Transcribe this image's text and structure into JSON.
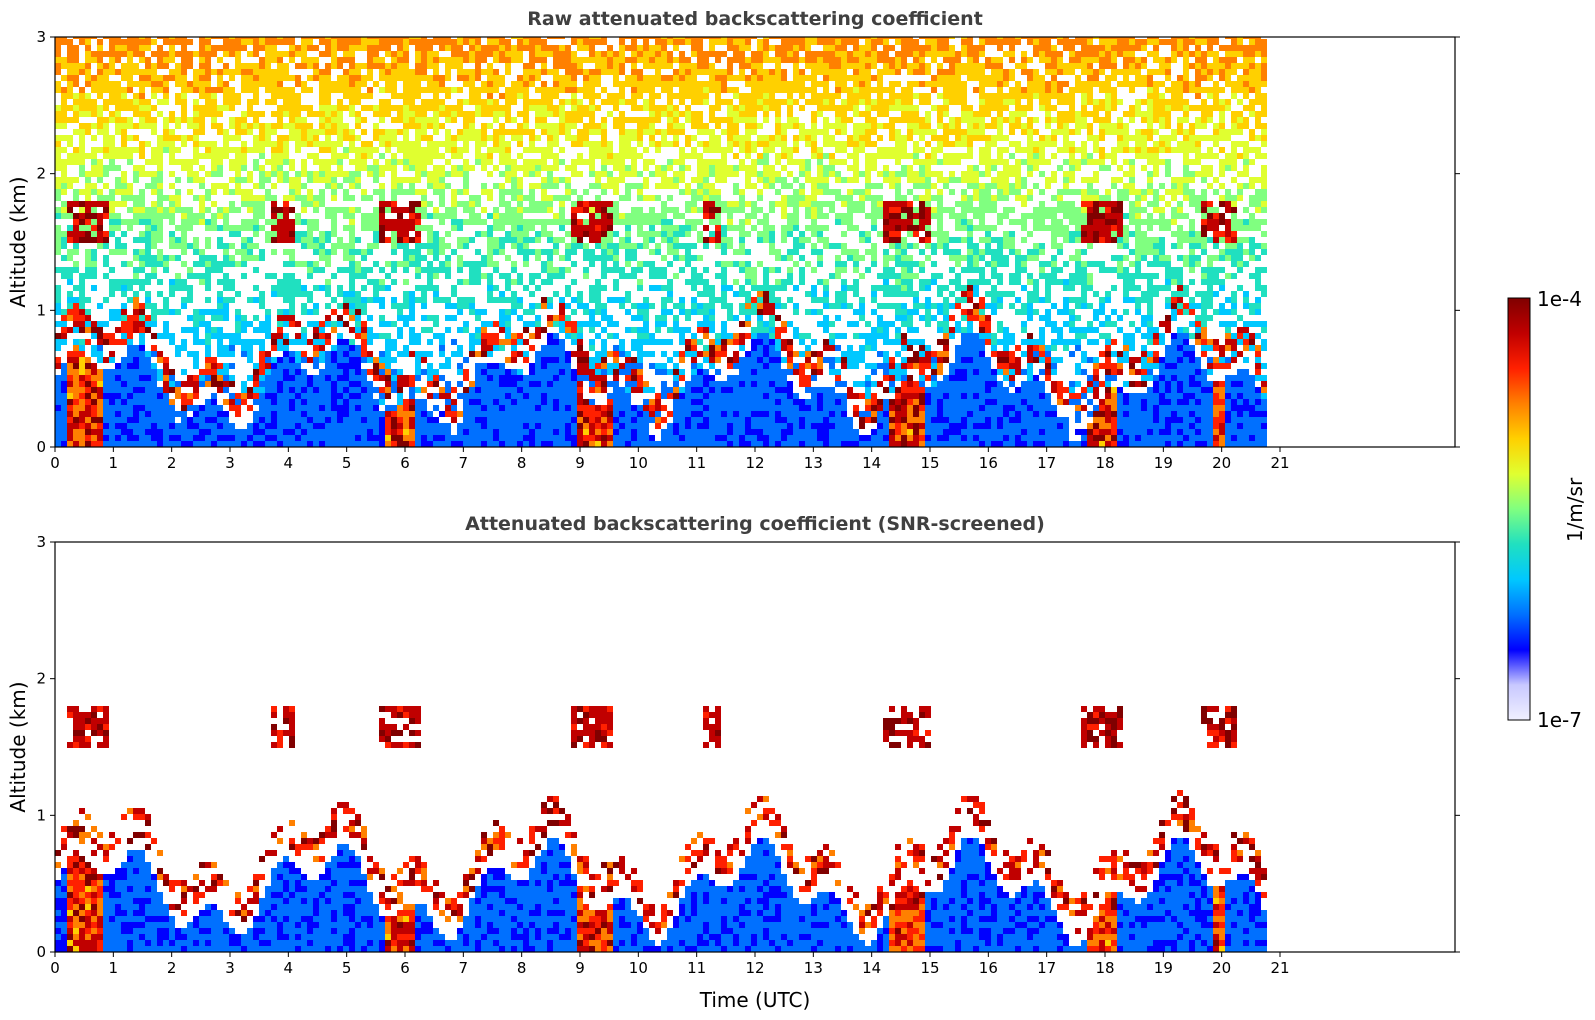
{
  "chart_data": [
    {
      "type": "heatmap",
      "title": "Raw attenuated backscattering coefficient",
      "xlabel": "",
      "ylabel": "Altitude (km)",
      "xlim": [
        0,
        24
      ],
      "ylim": [
        0,
        3
      ],
      "xticks": [
        "0",
        "1",
        "2",
        "3",
        "4",
        "5",
        "6",
        "7",
        "8",
        "9",
        "10",
        "11",
        "12",
        "13",
        "14",
        "15",
        "16",
        "17",
        "18",
        "19",
        "20",
        "21"
      ],
      "yticks": [
        "0",
        "1",
        "2",
        "3"
      ],
      "data_extent_x": [
        0,
        20.8
      ],
      "screened": false
    },
    {
      "type": "heatmap",
      "title": "Attenuated backscattering coefficient (SNR-screened)",
      "xlabel": "Time (UTC)",
      "ylabel": "Altitude (km)",
      "xlim": [
        0,
        24
      ],
      "ylim": [
        0,
        3
      ],
      "xticks": [
        "0",
        "1",
        "2",
        "3",
        "4",
        "5",
        "6",
        "7",
        "8",
        "9",
        "10",
        "11",
        "12",
        "13",
        "14",
        "15",
        "16",
        "17",
        "18",
        "19",
        "20",
        "21"
      ],
      "yticks": [
        "0",
        "1",
        "2",
        "3"
      ],
      "data_extent_x": [
        0,
        20.8
      ],
      "screened": true
    }
  ],
  "colorbar": {
    "label": "1/m/sr",
    "max_label": "1e-4",
    "min_label": "1e-7",
    "scale": "log",
    "colormap": [
      "#f0f0ff",
      "#c8c8ff",
      "#0000ff",
      "#0070ff",
      "#00c8ff",
      "#20e0c0",
      "#80ff80",
      "#e0ff30",
      "#ffd000",
      "#ff8000",
      "#ff2000",
      "#c00000",
      "#800000"
    ]
  }
}
